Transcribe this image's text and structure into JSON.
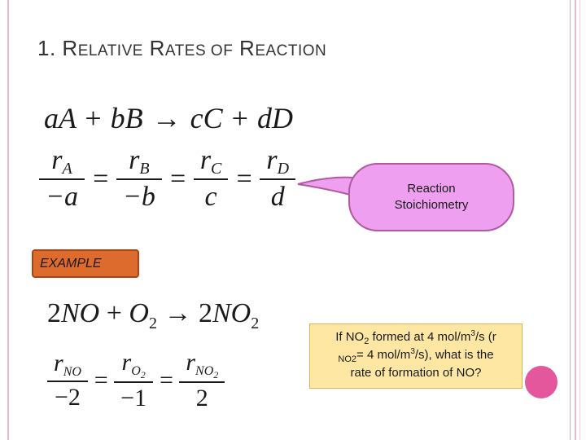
{
  "slide": {
    "title": "1. Relative Rates of Reaction",
    "example_label": "EXAMPLE"
  },
  "general_equation": {
    "a": "a",
    "A": "A",
    "b": "b",
    "B": "B",
    "c": "c",
    "C": "C",
    "d": "d",
    "D": "D",
    "plus": "+",
    "arrow": "→"
  },
  "rate_relations": {
    "r": "r",
    "subs": [
      "A",
      "B",
      "C",
      "D"
    ],
    "denominators": [
      "−a",
      "−b",
      "c",
      "d"
    ],
    "equals": "="
  },
  "callout": {
    "line1": "Reaction",
    "line2": "Stoichiometry",
    "fill": "#ef9fef",
    "stroke": "#b05a9f"
  },
  "no_equation": {
    "coef_no": "2",
    "no": "NO",
    "o": "O",
    "o_sub": "2",
    "coef_no2": "2",
    "no2": "NO",
    "no2_sub": "2"
  },
  "no_rates": {
    "r": "r",
    "num1_sub": "NO",
    "num2_sub": "O",
    "num2_subsub": "2",
    "num3_sub": "NO",
    "num3_subsub": "2",
    "denominators": [
      "−2",
      "−1",
      "2"
    ]
  },
  "question": {
    "part1": "If NO",
    "sub1": "2",
    "part2": " formed at 4 mol/m",
    "sup1": "3",
    "part3": "/s (r",
    "line2_sub": "NO",
    "line2_subsub": "2",
    "line2_text": "= 4 mol/m",
    "sup2": "3",
    "line2_end": "/s), what is the",
    "line3": "rate of formation of NO?",
    "fill": "#fde7a3"
  },
  "colors": {
    "example_fill": "#dd6b2e",
    "accent_circle": "#e4579c",
    "rule_pink": "#e8b8cc"
  }
}
